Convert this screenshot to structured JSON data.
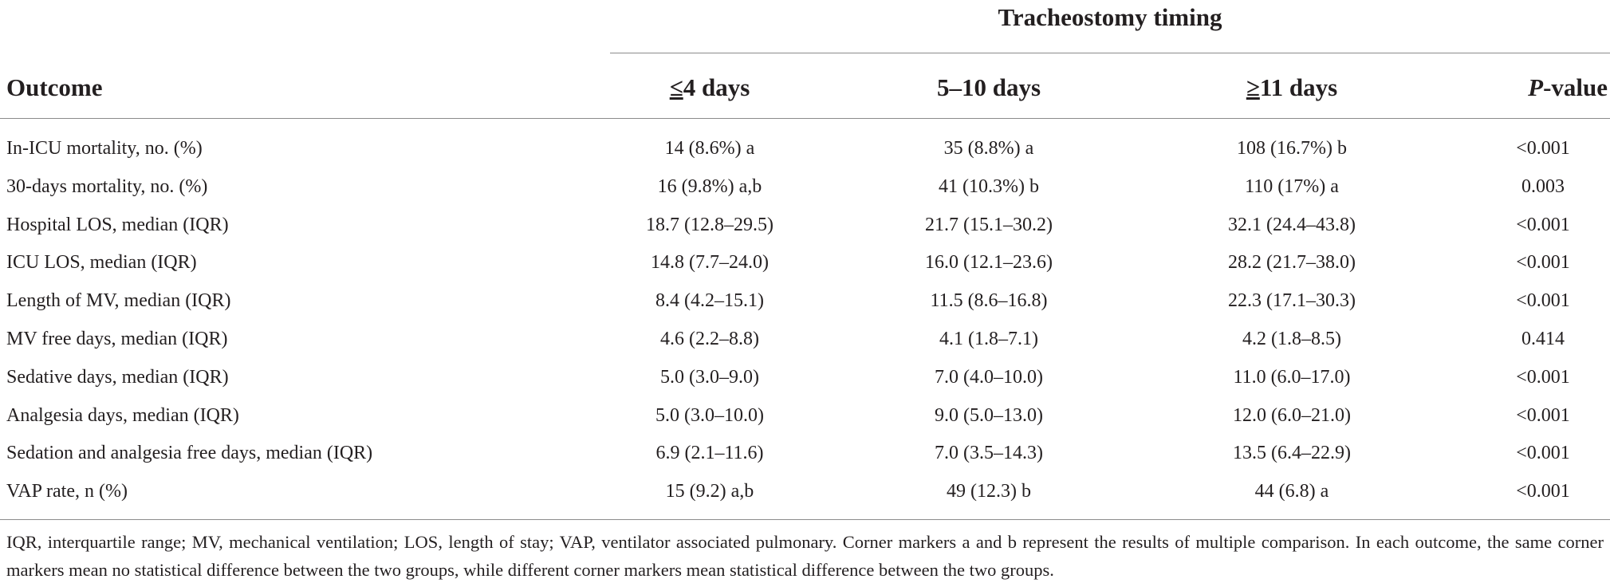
{
  "table": {
    "group_header": "Tracheostomy timing",
    "columns": {
      "outcome": "Outcome",
      "c1_symbol": "≤",
      "c1_rest": "4 days",
      "c2": "5–10 days",
      "c3_symbol": "≥",
      "c3_rest": "11 days",
      "p_italic": "P",
      "p_rest": "-value"
    },
    "rows": [
      {
        "outcome": "In-ICU mortality, no. (%)",
        "c1": "14 (8.6%) a",
        "c2": "35 (8.8%) a",
        "c3": "108 (16.7%) b",
        "p": "<0.001"
      },
      {
        "outcome": "30-days mortality, no. (%)",
        "c1": "16 (9.8%) a,b",
        "c2": "41 (10.3%) b",
        "c3": "110 (17%) a",
        "p": "0.003"
      },
      {
        "outcome": "Hospital LOS, median (IQR)",
        "c1": "18.7 (12.8–29.5)",
        "c2": "21.7 (15.1–30.2)",
        "c3": "32.1 (24.4–43.8)",
        "p": "<0.001"
      },
      {
        "outcome": "ICU LOS, median (IQR)",
        "c1": "14.8 (7.7–24.0)",
        "c2": "16.0 (12.1–23.6)",
        "c3": "28.2 (21.7–38.0)",
        "p": "<0.001"
      },
      {
        "outcome": "Length of MV, median (IQR)",
        "c1": "8.4 (4.2–15.1)",
        "c2": "11.5 (8.6–16.8)",
        "c3": "22.3 (17.1–30.3)",
        "p": "<0.001"
      },
      {
        "outcome": "MV free days, median (IQR)",
        "c1": "4.6 (2.2–8.8)",
        "c2": "4.1 (1.8–7.1)",
        "c3": "4.2 (1.8–8.5)",
        "p": "0.414"
      },
      {
        "outcome": "Sedative days, median (IQR)",
        "c1": "5.0 (3.0–9.0)",
        "c2": "7.0 (4.0–10.0)",
        "c3": "11.0 (6.0–17.0)",
        "p": "<0.001"
      },
      {
        "outcome": "Analgesia days, median (IQR)",
        "c1": "5.0 (3.0–10.0)",
        "c2": "9.0 (5.0–13.0)",
        "c3": "12.0 (6.0–21.0)",
        "p": "<0.001"
      },
      {
        "outcome": "Sedation and analgesia free days, median (IQR)",
        "c1": "6.9 (2.1–11.6)",
        "c2": "7.0 (3.5–14.3)",
        "c3": "13.5 (6.4–22.9)",
        "p": "<0.001"
      },
      {
        "outcome": "VAP rate, n (%)",
        "c1": "15 (9.2) a,b",
        "c2": "49 (12.3) b",
        "c3": "44 (6.8) a",
        "p": "<0.001"
      }
    ],
    "footnote": "IQR, interquartile range; MV, mechanical ventilation; LOS, length of stay; VAP, ventilator associated pulmonary. Corner markers a and b represent the results of multiple comparison. In each outcome, the same corner markers mean no statistical difference between the two groups, while different corner markers mean statistical difference between the two groups."
  }
}
